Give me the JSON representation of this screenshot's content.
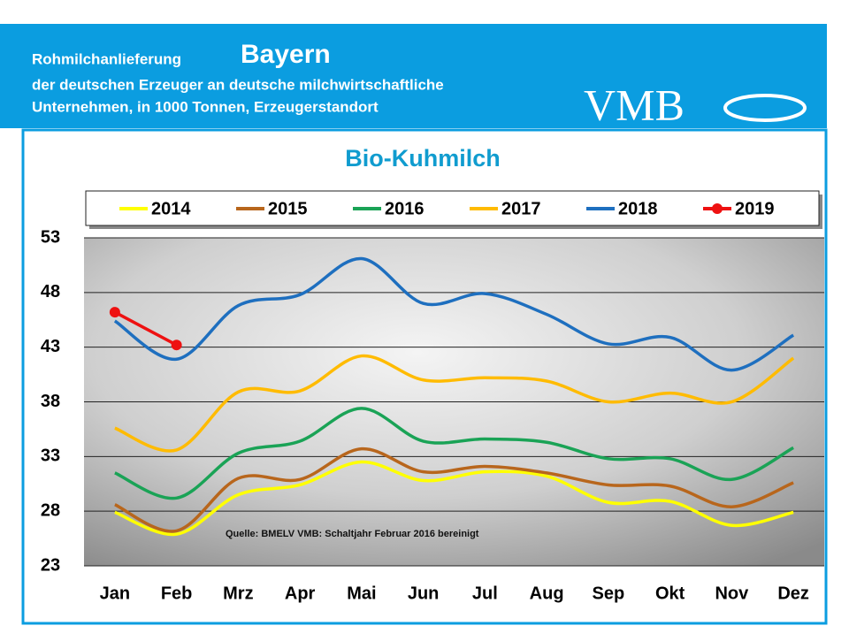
{
  "header": {
    "line1": "Rohmilchanlieferung",
    "region": "Bayern",
    "line2": "der deutschen Erzeuger an deutsche milchwirtschaftliche",
    "line3": "Unternehmen, in 1000 Tonnen, Erzeugerstandort",
    "logo": "VMB"
  },
  "chart_data": {
    "type": "line",
    "title": "Bio-Kuhmilch",
    "categories": [
      "Jan",
      "Feb",
      "Mrz",
      "Apr",
      "Mai",
      "Jun",
      "Jul",
      "Aug",
      "Sep",
      "Okt",
      "Nov",
      "Dez"
    ],
    "series": [
      {
        "name": "2014",
        "color": "#ffff00",
        "values": [
          27.9,
          25.9,
          29.5,
          30.4,
          32.5,
          30.8,
          31.6,
          31.2,
          28.8,
          28.9,
          26.7,
          27.9
        ]
      },
      {
        "name": "2015",
        "color": "#b8661c",
        "values": [
          28.6,
          26.2,
          31.0,
          30.9,
          33.7,
          31.6,
          32.1,
          31.5,
          30.4,
          30.3,
          28.4,
          30.6
        ]
      },
      {
        "name": "2016",
        "color": "#1aa356",
        "values": [
          31.5,
          29.2,
          33.3,
          34.4,
          37.4,
          34.4,
          34.6,
          34.3,
          32.8,
          32.8,
          30.9,
          33.8
        ]
      },
      {
        "name": "2017",
        "color": "#ffbb00",
        "values": [
          35.6,
          33.6,
          38.9,
          39.0,
          42.2,
          40.0,
          40.2,
          39.9,
          38.0,
          38.8,
          38.0,
          42.0
        ]
      },
      {
        "name": "2018",
        "color": "#1e6fbf",
        "values": [
          45.4,
          41.9,
          46.8,
          47.8,
          51.1,
          47.0,
          47.9,
          46.0,
          43.3,
          43.9,
          40.9,
          44.1
        ]
      },
      {
        "name": "2019",
        "color": "#ee1111",
        "markers": true,
        "values": [
          46.2,
          43.2,
          null,
          null,
          null,
          null,
          null,
          null,
          null,
          null,
          null,
          null
        ]
      }
    ],
    "ylim": [
      23,
      53
    ],
    "yticks": [
      23,
      28,
      33,
      38,
      43,
      48,
      53
    ],
    "grid": true,
    "annotation": "Quelle:  BMELV    VMB: Schaltjahr  Februar  2016  bereinigt"
  }
}
